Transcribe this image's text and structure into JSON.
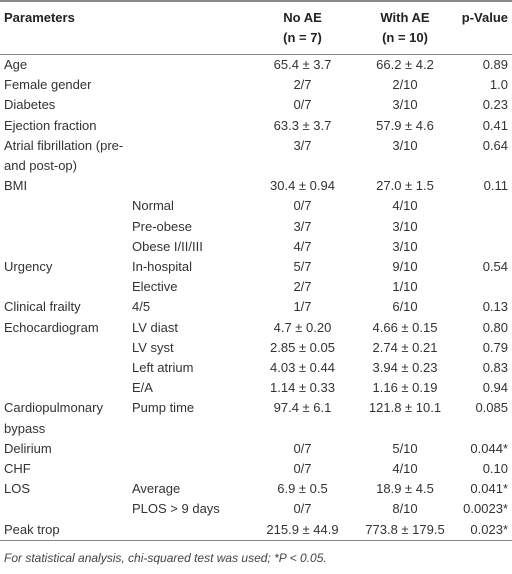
{
  "table": {
    "header": {
      "parameter": "Parameters",
      "no_ae": "No AE",
      "no_ae_n": "(n = 7)",
      "with_ae": "With AE",
      "with_ae_n": "(n = 10)",
      "p": "p-Value"
    },
    "rows": [
      {
        "parameter": "Age",
        "no_ae": "65.4 ± 3.7",
        "with_ae": "66.2 ± 4.2",
        "p": "0.89"
      },
      {
        "parameter": "Female gender",
        "no_ae": "2/7",
        "with_ae": "2/10",
        "p": "1.0"
      },
      {
        "parameter": "Diabetes",
        "no_ae": "0/7",
        "with_ae": "3/10",
        "p": "0.23"
      },
      {
        "parameter": "Ejection fraction",
        "no_ae": "63.3 ± 3.7",
        "with_ae": "57.9 ± 4.6",
        "p": "0.41"
      },
      {
        "parameter": "Atrial fibrillation (pre- and post-op)",
        "no_ae": "3/7",
        "with_ae": "3/10",
        "p": "0.64"
      },
      {
        "parameter": "BMI",
        "no_ae": "30.4 ± 0.94",
        "with_ae": "27.0 ± 1.5",
        "p": "0.11"
      },
      {
        "sub": "Normal",
        "no_ae": "0/7",
        "with_ae": "4/10"
      },
      {
        "sub": "Pre-obese",
        "no_ae": "3/7",
        "with_ae": "3/10"
      },
      {
        "sub": "Obese I/II/III",
        "no_ae": "4/7",
        "with_ae": "3/10"
      },
      {
        "parameter": "Urgency",
        "sub": "In-hospital",
        "no_ae": "5/7",
        "with_ae": "9/10",
        "p": "0.54"
      },
      {
        "sub": "Elective",
        "no_ae": "2/7",
        "with_ae": "1/10"
      },
      {
        "parameter": "Clinical frailty",
        "sub": "4/5",
        "no_ae": "1/7",
        "with_ae": "6/10",
        "p": "0.13"
      },
      {
        "parameter": "Echocardiogram",
        "sub": "LV diast",
        "no_ae": "4.7 ± 0.20",
        "with_ae": "4.66 ± 0.15",
        "p": "0.80"
      },
      {
        "sub": "LV syst",
        "no_ae": "2.85 ± 0.05",
        "with_ae": "2.74 ± 0.21",
        "p": "0.79"
      },
      {
        "sub": "Left atrium",
        "no_ae": "4.03 ± 0.44",
        "with_ae": "3.94 ± 0.23",
        "p": "0.83"
      },
      {
        "sub": "E/A",
        "no_ae": "1.14 ± 0.33",
        "with_ae": "1.16 ± 0.19",
        "p": "0.94"
      },
      {
        "parameter": "Cardiopulmonary bypass",
        "sub": "Pump time",
        "no_ae": "97.4 ± 6.1",
        "with_ae": "121.8 ± 10.1",
        "p": "0.085"
      },
      {
        "parameter": "Delirium",
        "no_ae": "0/7",
        "with_ae": "5/10",
        "p": "0.044*"
      },
      {
        "parameter": "CHF",
        "no_ae": "0/7",
        "with_ae": "4/10",
        "p": "0.10"
      },
      {
        "parameter": "LOS",
        "sub": "Average",
        "no_ae": "6.9 ± 0.5",
        "with_ae": "18.9 ± 4.5",
        "p": "0.041*"
      },
      {
        "sub": "PLOS > 9 days",
        "no_ae": "0/7",
        "with_ae": "8/10",
        "p": "0.0023*"
      },
      {
        "parameter": "Peak trop",
        "no_ae": "215.9 ± 44.9",
        "with_ae": "773.8 ± 179.5",
        "p": "0.023*"
      }
    ],
    "footnote": "For statistical analysis, chi-squared test was used; *P < 0.05."
  }
}
